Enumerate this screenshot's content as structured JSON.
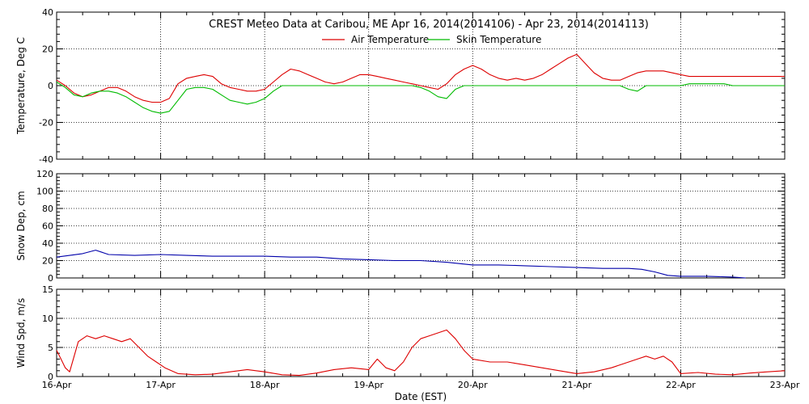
{
  "chart_data": [
    {
      "type": "line",
      "title": "CREST Meteo Data at Caribou, ME   Apr 16, 2014(2014106) - Apr 23, 2014(2014113)",
      "xlabel": "",
      "ylabel": "Temperature, Deg C",
      "ylim": [
        -40,
        40
      ],
      "yticks": [
        -40,
        -20,
        0,
        20,
        40
      ],
      "xlim": [
        "2014-04-16",
        "2014-04-23"
      ],
      "grid": true,
      "legend": "top-center",
      "series": [
        {
          "name": "Air Temperature",
          "color": "#dd0000",
          "x": [
            "2014-04-16 00:00",
            "2014-04-16 02:00",
            "2014-04-16 04:00",
            "2014-04-16 06:00",
            "2014-04-16 08:00",
            "2014-04-16 10:00",
            "2014-04-16 12:00",
            "2014-04-16 14:00",
            "2014-04-16 16:00",
            "2014-04-16 18:00",
            "2014-04-16 20:00",
            "2014-04-16 22:00",
            "2014-04-17 00:00",
            "2014-04-17 02:00",
            "2014-04-17 04:00",
            "2014-04-17 06:00",
            "2014-04-17 08:00",
            "2014-04-17 10:00",
            "2014-04-17 12:00",
            "2014-04-17 14:00",
            "2014-04-17 16:00",
            "2014-04-17 18:00",
            "2014-04-17 20:00",
            "2014-04-17 22:00",
            "2014-04-18 00:00",
            "2014-04-18 02:00",
            "2014-04-18 04:00",
            "2014-04-18 06:00",
            "2014-04-18 08:00",
            "2014-04-18 10:00",
            "2014-04-18 12:00",
            "2014-04-18 14:00",
            "2014-04-18 16:00",
            "2014-04-18 18:00",
            "2014-04-18 20:00",
            "2014-04-18 22:00",
            "2014-04-19 00:00",
            "2014-04-19 02:00",
            "2014-04-19 04:00",
            "2014-04-19 06:00",
            "2014-04-19 08:00",
            "2014-04-19 10:00",
            "2014-04-19 12:00",
            "2014-04-19 14:00",
            "2014-04-19 16:00",
            "2014-04-19 18:00",
            "2014-04-19 20:00",
            "2014-04-19 22:00",
            "2014-04-20 00:00",
            "2014-04-20 02:00",
            "2014-04-20 04:00",
            "2014-04-20 06:00",
            "2014-04-20 08:00",
            "2014-04-20 10:00",
            "2014-04-20 12:00",
            "2014-04-20 14:00",
            "2014-04-20 16:00",
            "2014-04-20 18:00",
            "2014-04-20 20:00",
            "2014-04-20 22:00",
            "2014-04-21 00:00",
            "2014-04-21 02:00",
            "2014-04-21 04:00",
            "2014-04-21 06:00",
            "2014-04-21 08:00",
            "2014-04-21 10:00",
            "2014-04-21 12:00",
            "2014-04-21 14:00",
            "2014-04-21 16:00",
            "2014-04-21 18:00",
            "2014-04-21 20:00",
            "2014-04-21 22:00",
            "2014-04-22 00:00",
            "2014-04-22 02:00",
            "2014-04-22 04:00",
            "2014-04-22 06:00",
            "2014-04-22 08:00",
            "2014-04-22 10:00",
            "2014-04-22 12:00",
            "2014-04-22 14:00",
            "2014-04-22 16:00",
            "2014-04-22 18:00",
            "2014-04-22 20:00",
            "2014-04-22 22:00",
            "2014-04-23 00:00"
          ],
          "y": [
            3,
            0,
            -4,
            -6,
            -5,
            -3,
            -1,
            -1,
            -3,
            -6,
            -8,
            -9,
            -9,
            -7,
            1,
            4,
            5,
            6,
            5,
            1,
            -1,
            -2,
            -3,
            -3,
            -2,
            2,
            6,
            9,
            8,
            6,
            4,
            2,
            1,
            2,
            4,
            6,
            6,
            5,
            4,
            3,
            2,
            1,
            0,
            -1,
            -2,
            1,
            6,
            9,
            11,
            9,
            6,
            4,
            3,
            4,
            3,
            4,
            6,
            9,
            12,
            15,
            17,
            12,
            7,
            4,
            3,
            3,
            5,
            7,
            8,
            8,
            8,
            7,
            6,
            5,
            5,
            5,
            5,
            5,
            5,
            5,
            5,
            5,
            5,
            5,
            5
          ]
        },
        {
          "name": "Skin Temperature",
          "color": "#00bb00",
          "x": [
            "2014-04-16 00:00",
            "2014-04-16 02:00",
            "2014-04-16 04:00",
            "2014-04-16 06:00",
            "2014-04-16 08:00",
            "2014-04-16 10:00",
            "2014-04-16 12:00",
            "2014-04-16 14:00",
            "2014-04-16 16:00",
            "2014-04-16 18:00",
            "2014-04-16 20:00",
            "2014-04-16 22:00",
            "2014-04-17 00:00",
            "2014-04-17 02:00",
            "2014-04-17 04:00",
            "2014-04-17 06:00",
            "2014-04-17 08:00",
            "2014-04-17 10:00",
            "2014-04-17 12:00",
            "2014-04-17 14:00",
            "2014-04-17 16:00",
            "2014-04-17 18:00",
            "2014-04-17 20:00",
            "2014-04-17 22:00",
            "2014-04-18 00:00",
            "2014-04-18 02:00",
            "2014-04-18 04:00",
            "2014-04-18 06:00",
            "2014-04-18 08:00",
            "2014-04-18 10:00",
            "2014-04-18 12:00",
            "2014-04-18 14:00",
            "2014-04-18 16:00",
            "2014-04-18 18:00",
            "2014-04-18 20:00",
            "2014-04-18 22:00",
            "2014-04-19 00:00",
            "2014-04-19 02:00",
            "2014-04-19 04:00",
            "2014-04-19 06:00",
            "2014-04-19 08:00",
            "2014-04-19 10:00",
            "2014-04-19 12:00",
            "2014-04-19 14:00",
            "2014-04-19 16:00",
            "2014-04-19 18:00",
            "2014-04-19 20:00",
            "2014-04-19 22:00",
            "2014-04-20 00:00",
            "2014-04-20 02:00",
            "2014-04-20 04:00",
            "2014-04-20 06:00",
            "2014-04-20 08:00",
            "2014-04-20 10:00",
            "2014-04-20 12:00",
            "2014-04-20 14:00",
            "2014-04-20 16:00",
            "2014-04-20 18:00",
            "2014-04-20 20:00",
            "2014-04-20 22:00",
            "2014-04-21 00:00",
            "2014-04-21 02:00",
            "2014-04-21 04:00",
            "2014-04-21 06:00",
            "2014-04-21 08:00",
            "2014-04-21 10:00",
            "2014-04-21 12:00",
            "2014-04-21 14:00",
            "2014-04-21 16:00",
            "2014-04-21 18:00",
            "2014-04-21 20:00",
            "2014-04-21 22:00",
            "2014-04-22 00:00",
            "2014-04-22 02:00",
            "2014-04-22 04:00",
            "2014-04-22 06:00",
            "2014-04-22 08:00",
            "2014-04-22 10:00",
            "2014-04-22 12:00",
            "2014-04-22 14:00",
            "2014-04-22 16:00",
            "2014-04-22 18:00",
            "2014-04-22 20:00",
            "2014-04-22 22:00",
            "2014-04-23 00:00"
          ],
          "y": [
            2,
            -1,
            -5,
            -6,
            -4,
            -3,
            -3,
            -4,
            -6,
            -9,
            -12,
            -14,
            -15,
            -14,
            -8,
            -2,
            -1,
            -1,
            -2,
            -5,
            -8,
            -9,
            -10,
            -9,
            -7,
            -3,
            0,
            0,
            0,
            0,
            0,
            0,
            0,
            0,
            0,
            0,
            0,
            0,
            0,
            0,
            0,
            0,
            -1,
            -3,
            -6,
            -7,
            -2,
            0,
            0,
            0,
            0,
            0,
            0,
            0,
            0,
            0,
            0,
            0,
            0,
            0,
            0,
            0,
            0,
            0,
            0,
            0,
            -2,
            -3,
            0,
            0,
            0,
            0,
            0,
            1,
            1,
            1,
            1,
            1,
            0,
            0,
            0,
            0,
            0,
            0,
            0
          ]
        }
      ]
    },
    {
      "type": "line",
      "title": "",
      "xlabel": "",
      "ylabel": "Snow Dep, cm",
      "ylim": [
        0,
        120
      ],
      "yticks": [
        0,
        20,
        40,
        60,
        80,
        100,
        120
      ],
      "xlim": [
        "2014-04-16",
        "2014-04-23"
      ],
      "grid": true,
      "series": [
        {
          "color": "#0000aa",
          "x": [
            "2014-04-16 00:00",
            "2014-04-16 03:00",
            "2014-04-16 06:00",
            "2014-04-16 09:00",
            "2014-04-16 12:00",
            "2014-04-16 18:00",
            "2014-04-17 00:00",
            "2014-04-17 06:00",
            "2014-04-17 12:00",
            "2014-04-17 18:00",
            "2014-04-18 00:00",
            "2014-04-18 06:00",
            "2014-04-18 12:00",
            "2014-04-18 18:00",
            "2014-04-19 00:00",
            "2014-04-19 06:00",
            "2014-04-19 12:00",
            "2014-04-19 18:00",
            "2014-04-20 00:00",
            "2014-04-20 06:00",
            "2014-04-20 12:00",
            "2014-04-20 18:00",
            "2014-04-21 00:00",
            "2014-04-21 06:00",
            "2014-04-21 12:00",
            "2014-04-21 15:00",
            "2014-04-21 18:00",
            "2014-04-21 21:00",
            "2014-04-22 00:00",
            "2014-04-22 06:00",
            "2014-04-22 12:00",
            "2014-04-22 15:00"
          ],
          "y": [
            24,
            26,
            28,
            32,
            27,
            26,
            27,
            26,
            25,
            25,
            25,
            24,
            24,
            22,
            21,
            20,
            20,
            18,
            15,
            15,
            14,
            13,
            12,
            11,
            11,
            10,
            7,
            3,
            2,
            2,
            1,
            0
          ]
        }
      ]
    },
    {
      "type": "line",
      "title": "",
      "xlabel": "Date (EST)",
      "ylabel": "Wind Spd, m/s",
      "ylim": [
        0,
        15
      ],
      "yticks": [
        0,
        5,
        10,
        15
      ],
      "xlim": [
        "2014-04-16",
        "2014-04-23"
      ],
      "xticklabels": [
        "16-Apr",
        "17-Apr",
        "18-Apr",
        "19-Apr",
        "20-Apr",
        "21-Apr",
        "22-Apr",
        "23-Apr"
      ],
      "grid": true,
      "series": [
        {
          "color": "#dd0000",
          "x": [
            "2014-04-16 00:00",
            "2014-04-16 01:00",
            "2014-04-16 02:00",
            "2014-04-16 03:00",
            "2014-04-16 05:00",
            "2014-04-16 07:00",
            "2014-04-16 09:00",
            "2014-04-16 11:00",
            "2014-04-16 13:00",
            "2014-04-16 15:00",
            "2014-04-16 17:00",
            "2014-04-16 19:00",
            "2014-04-16 21:00",
            "2014-04-16 23:00",
            "2014-04-17 01:00",
            "2014-04-17 04:00",
            "2014-04-17 08:00",
            "2014-04-17 12:00",
            "2014-04-17 16:00",
            "2014-04-17 20:00",
            "2014-04-18 00:00",
            "2014-04-18 04:00",
            "2014-04-18 08:00",
            "2014-04-18 12:00",
            "2014-04-18 16:00",
            "2014-04-18 20:00",
            "2014-04-19 00:00",
            "2014-04-19 02:00",
            "2014-04-19 04:00",
            "2014-04-19 06:00",
            "2014-04-19 08:00",
            "2014-04-19 10:00",
            "2014-04-19 12:00",
            "2014-04-19 14:00",
            "2014-04-19 16:00",
            "2014-04-19 18:00",
            "2014-04-19 20:00",
            "2014-04-19 22:00",
            "2014-04-20 00:00",
            "2014-04-20 04:00",
            "2014-04-20 08:00",
            "2014-04-20 12:00",
            "2014-04-20 16:00",
            "2014-04-20 20:00",
            "2014-04-21 00:00",
            "2014-04-21 04:00",
            "2014-04-21 08:00",
            "2014-04-21 12:00",
            "2014-04-21 14:00",
            "2014-04-21 16:00",
            "2014-04-21 18:00",
            "2014-04-21 20:00",
            "2014-04-21 22:00",
            "2014-04-22 00:00",
            "2014-04-22 04:00",
            "2014-04-22 08:00",
            "2014-04-22 12:00",
            "2014-04-22 16:00",
            "2014-04-22 20:00",
            "2014-04-23 00:00"
          ],
          "y": [
            4.5,
            3,
            1.5,
            0.8,
            6,
            7,
            6.5,
            7,
            6.5,
            6,
            6.5,
            5,
            3.5,
            2.5,
            1.5,
            0.5,
            0.3,
            0.4,
            0.8,
            1.2,
            0.8,
            0.3,
            0.2,
            0.6,
            1.2,
            1.5,
            1.2,
            3,
            1.5,
            1,
            2.5,
            5,
            6.5,
            7,
            7.5,
            8,
            6.5,
            4.5,
            3,
            2.5,
            2.5,
            2,
            1.5,
            1,
            0.5,
            0.8,
            1.5,
            2.5,
            3,
            3.5,
            3,
            3.5,
            2.5,
            0.5,
            0.7,
            0.4,
            0.3,
            0.6,
            0.8,
            1
          ]
        }
      ]
    }
  ]
}
